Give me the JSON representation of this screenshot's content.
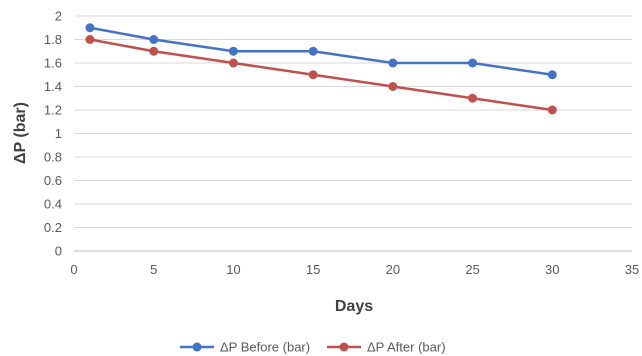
{
  "chart_data": {
    "type": "line",
    "title": "",
    "xlabel": "Days",
    "ylabel": "ΔP (bar)",
    "xlim": [
      0,
      35
    ],
    "ylim": [
      0,
      2
    ],
    "xticks": [
      0,
      5,
      10,
      15,
      20,
      25,
      30,
      35
    ],
    "yticks": [
      0,
      0.2,
      0.4,
      0.6,
      0.8,
      1,
      1.2,
      1.4,
      1.6,
      1.8,
      2
    ],
    "grid": "horizontal",
    "legend_position": "bottom",
    "series": [
      {
        "name": "ΔP Before (bar)",
        "color": "#4472C4",
        "x": [
          1,
          5,
          10,
          15,
          20,
          25,
          30
        ],
        "y": [
          1.9,
          1.8,
          1.7,
          1.7,
          1.6,
          1.6,
          1.5
        ]
      },
      {
        "name": "ΔP After (bar)",
        "color": "#C0504D",
        "x": [
          1,
          5,
          10,
          15,
          20,
          25,
          30
        ],
        "y": [
          1.8,
          1.7,
          1.6,
          1.5,
          1.4,
          1.3,
          1.2
        ]
      }
    ]
  }
}
